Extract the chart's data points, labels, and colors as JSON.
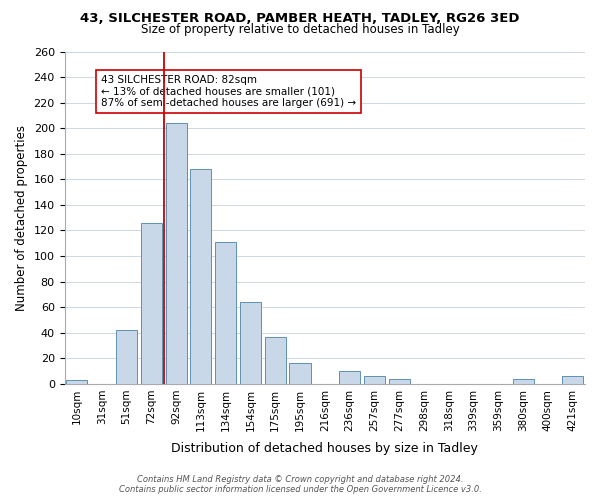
{
  "title_line1": "43, SILCHESTER ROAD, PAMBER HEATH, TADLEY, RG26 3ED",
  "title_line2": "Size of property relative to detached houses in Tadley",
  "xlabel": "Distribution of detached houses by size in Tadley",
  "ylabel": "Number of detached properties",
  "bar_labels": [
    "10sqm",
    "31sqm",
    "51sqm",
    "72sqm",
    "92sqm",
    "113sqm",
    "134sqm",
    "154sqm",
    "175sqm",
    "195sqm",
    "216sqm",
    "236sqm",
    "257sqm",
    "277sqm",
    "298sqm",
    "318sqm",
    "339sqm",
    "359sqm",
    "380sqm",
    "400sqm",
    "421sqm"
  ],
  "bar_values": [
    3,
    0,
    42,
    126,
    204,
    168,
    111,
    64,
    37,
    16,
    0,
    10,
    6,
    4,
    0,
    0,
    0,
    0,
    4,
    0,
    6
  ],
  "bar_color": "#c8d8e8",
  "bar_edge_color": "#6090b0",
  "vline_x_index": 4,
  "vline_color": "#cc0000",
  "annotation_text": "43 SILCHESTER ROAD: 82sqm\n← 13% of detached houses are smaller (101)\n87% of semi-detached houses are larger (691) →",
  "annotation_box_color": "#ffffff",
  "annotation_box_edge": "#cc0000",
  "ylim": [
    0,
    260
  ],
  "yticks": [
    0,
    20,
    40,
    60,
    80,
    100,
    120,
    140,
    160,
    180,
    200,
    220,
    240,
    260
  ],
  "footer_line1": "Contains HM Land Registry data © Crown copyright and database right 2024.",
  "footer_line2": "Contains public sector information licensed under the Open Government Licence v3.0.",
  "bg_color": "#ffffff",
  "grid_color": "#d0d8e0"
}
